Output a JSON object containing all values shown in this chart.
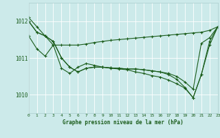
{
  "xlabel": "Graphe pression niveau de la mer (hPa)",
  "bg_color": "#cceaea",
  "grid_color": "#aacccc",
  "line_color": "#1a5c1a",
  "ylim": [
    1009.5,
    1012.5
  ],
  "xlim": [
    0,
    23
  ],
  "yticks": [
    1010,
    1011,
    1012
  ],
  "xticks": [
    0,
    1,
    2,
    3,
    4,
    5,
    6,
    7,
    8,
    9,
    10,
    11,
    12,
    13,
    14,
    15,
    16,
    17,
    18,
    19,
    20,
    21,
    22,
    23
  ],
  "series": [
    [
      1012.1,
      1011.85,
      1011.6,
      1011.35,
      1011.35,
      1011.35,
      1011.35,
      1011.38,
      1011.42,
      1011.45,
      1011.48,
      1011.5,
      1011.52,
      1011.54,
      1011.56,
      1011.58,
      1011.6,
      1011.62,
      1011.64,
      1011.66,
      1011.68,
      1011.7,
      1011.75,
      1011.85
    ],
    [
      1012.0,
      1011.7,
      1011.6,
      1011.45,
      1011.0,
      1010.75,
      1010.62,
      1010.72,
      1010.75,
      1010.75,
      1010.73,
      1010.72,
      1010.7,
      1010.7,
      1010.68,
      1010.65,
      1010.62,
      1010.58,
      1010.5,
      1010.35,
      1010.15,
      1011.4,
      1011.55,
      1011.85
    ],
    [
      1012.0,
      1011.7,
      1011.6,
      1011.45,
      1011.0,
      1010.75,
      1010.62,
      1010.72,
      1010.75,
      1010.75,
      1010.73,
      1010.72,
      1010.7,
      1010.7,
      1010.68,
      1010.65,
      1010.62,
      1010.55,
      1010.42,
      1010.2,
      1009.92,
      1010.55,
      1011.45,
      1011.85
    ],
    [
      1011.6,
      1011.25,
      1011.05,
      1011.35,
      1010.72,
      1010.58,
      1010.75,
      1010.85,
      1010.8,
      1010.75,
      1010.72,
      1010.7,
      1010.68,
      1010.62,
      1010.58,
      1010.52,
      1010.48,
      1010.4,
      1010.3,
      1010.18,
      1009.92,
      1010.55,
      1011.35,
      1011.85
    ]
  ]
}
